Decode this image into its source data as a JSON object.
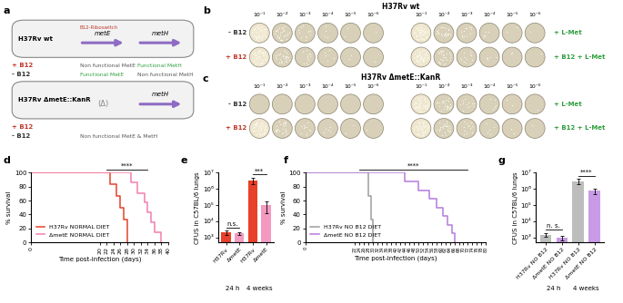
{
  "panel_labels": [
    "a",
    "b",
    "c",
    "d",
    "e",
    "f",
    "g"
  ],
  "diagram": {
    "cells": [
      {
        "strain": "H37Rv wt",
        "riboswitch": "B12-Riboswitch",
        "genes": [
          "metE",
          "metH"
        ],
        "with_b12": "+ B12",
        "with_b12_status": [
          "Non functional MetE",
          "Functional MetH"
        ],
        "without_b12": "- B12",
        "without_b12_status": [
          "Functional MetE",
          "Non functional MetH"
        ]
      },
      {
        "strain": "H37Rv ΔmetE::KanR",
        "genes": [
          "(Δ)",
          "metH"
        ],
        "with_b12": "+ B12",
        "without_b12": "- B12",
        "without_b12_status": [
          "Non functional MetE & MetH"
        ]
      }
    ]
  },
  "plates": [
    {
      "title": "H37Rv wt",
      "dilutions": [
        "10⁻¹",
        "10⁻²",
        "10⁻³",
        "10⁻⁴",
        "10⁻⁵",
        "10⁻⁶"
      ],
      "rows": [
        "- B12",
        "+ B12"
      ],
      "right_rows": [
        "+ L-Met",
        "+ B12 + L-Met"
      ],
      "growth": [
        [
          true,
          true
        ],
        [
          true,
          true
        ]
      ]
    },
    {
      "title": "H37Rv ΔmetE::KanR",
      "dilutions": [
        "10⁻¹",
        "10⁻²",
        "10⁻³",
        "10⁻⁴",
        "10⁻⁵",
        "10⁻⁶"
      ],
      "rows": [
        "- B12",
        "+ B12"
      ],
      "right_rows": [
        "+ L-Met",
        "+ B12 + L-Met"
      ],
      "growth": [
        [
          false,
          true
        ],
        [
          true,
          true
        ]
      ]
    }
  ],
  "chart_data": [
    {
      "type": "line",
      "line_style": "steps",
      "xlabel": "Time post-infection (days)",
      "ylabel": "% survival",
      "xlim": [
        0,
        40
      ],
      "xticks": [
        0,
        20,
        22,
        24,
        26,
        28,
        30,
        32,
        34,
        36,
        38,
        40
      ],
      "ylim": [
        0,
        100
      ],
      "yticks": [
        0,
        20,
        40,
        60,
        80,
        100
      ],
      "legend": "lower left",
      "significance": {
        "label": "****",
        "x": [
          22,
          34
        ]
      },
      "series": [
        {
          "name": "H37Rv NORMAL DIET",
          "color": "#e8402a",
          "x": [
            0,
            23,
            25,
            26,
            27,
            28
          ],
          "values": [
            100,
            83,
            67,
            50,
            33,
            0
          ]
        },
        {
          "name": "ΔmetE NORMAL DIET",
          "color": "#f27fae",
          "x": [
            0,
            29,
            31,
            33,
            34,
            35,
            36,
            38
          ],
          "values": [
            100,
            86,
            71,
            57,
            43,
            29,
            14,
            0
          ]
        }
      ]
    },
    {
      "type": "bar",
      "log": "y",
      "ylabel": "CFUS in C57BL/6 lungs",
      "categories": [
        "H37Rv",
        "ΔmetE",
        "H37Rv",
        "ΔmetE"
      ],
      "groups": [
        {
          "label": "24 h",
          "categories": [
            0,
            1
          ]
        },
        {
          "label": "4 weeks",
          "categories": [
            2,
            3
          ]
        }
      ],
      "values": [
        2000,
        1800,
        3500000,
        100000
      ],
      "errors": [
        600,
        400,
        1500000,
        70000
      ],
      "colors": [
        "#e8402a",
        "#f49ac1",
        "#e8402a",
        "#f49ac1"
      ],
      "ylim": [
        500,
        10000000
      ],
      "yticks": [
        {
          "value": 1000,
          "label": "10³"
        },
        {
          "value": 10000,
          "label": "10⁴"
        },
        {
          "value": 100000,
          "label": "10⁵"
        },
        {
          "value": 1000000,
          "label": "10⁶"
        },
        {
          "value": 10000000,
          "label": "10⁷"
        }
      ],
      "comparisons": [
        {
          "label": "n.s.",
          "categories": [
            0,
            1
          ]
        },
        {
          "label": "***",
          "categories": [
            2,
            3
          ]
        }
      ]
    },
    {
      "type": "line",
      "line_style": "steps",
      "xlabel": "Time post-infection (days)",
      "ylabel": "% survival",
      "xlim": [
        0,
        80
      ],
      "xticks": [
        0,
        22,
        24,
        26,
        28,
        30,
        32,
        34,
        36,
        38,
        40,
        42,
        44,
        46,
        48,
        50,
        52,
        54,
        56,
        58,
        60,
        62,
        64,
        66,
        68,
        70,
        72,
        74,
        76,
        78,
        80
      ],
      "ylim": [
        0,
        100
      ],
      "yticks": [
        0,
        20,
        40,
        60,
        80,
        100
      ],
      "legend": "lower left",
      "significance": {
        "label": "****",
        "x": [
          24,
          72
        ]
      },
      "series": [
        {
          "name": "H37Rv NO B12 DIET",
          "color": "#9e9e9e",
          "x": [
            0,
            28,
            29,
            30
          ],
          "values": [
            100,
            67,
            33,
            0
          ]
        },
        {
          "name": "ΔmetE NO B12 DIET",
          "color": "#b57bdc",
          "x": [
            0,
            44,
            50,
            55,
            58,
            61,
            63,
            65,
            66
          ],
          "values": [
            100,
            88,
            75,
            63,
            50,
            38,
            25,
            13,
            0
          ]
        }
      ]
    },
    {
      "type": "bar",
      "log": "y",
      "ylabel": "CFUS in C57BL/6 lungs",
      "categories": [
        "H37Rv NO B12",
        "ΔmetE NO B12",
        "H37Rv NO B12",
        "ΔmetE NO B12"
      ],
      "groups": [
        {
          "label": "24 h",
          "categories": [
            0,
            1
          ]
        },
        {
          "label": "4 weeks",
          "categories": [
            2,
            3
          ]
        }
      ],
      "values": [
        1500,
        1000,
        3000000,
        800000
      ],
      "errors": [
        400,
        300,
        1000000,
        300000
      ],
      "colors": [
        "#bdbdbd",
        "#c99be6",
        "#bdbdbd",
        "#c99be6"
      ],
      "ylim": [
        500,
        10000000
      ],
      "yticks": [
        {
          "value": 1000,
          "label": "10³"
        },
        {
          "value": 10000,
          "label": "10⁴"
        },
        {
          "value": 100000,
          "label": "10⁵"
        },
        {
          "value": 1000000,
          "label": "10⁶"
        },
        {
          "value": 10000000,
          "label": "10⁷"
        }
      ],
      "comparisons": [
        {
          "label": "n. s.",
          "categories": [
            0,
            1
          ]
        },
        {
          "label": "****",
          "categories": [
            2,
            3
          ]
        }
      ]
    }
  ]
}
